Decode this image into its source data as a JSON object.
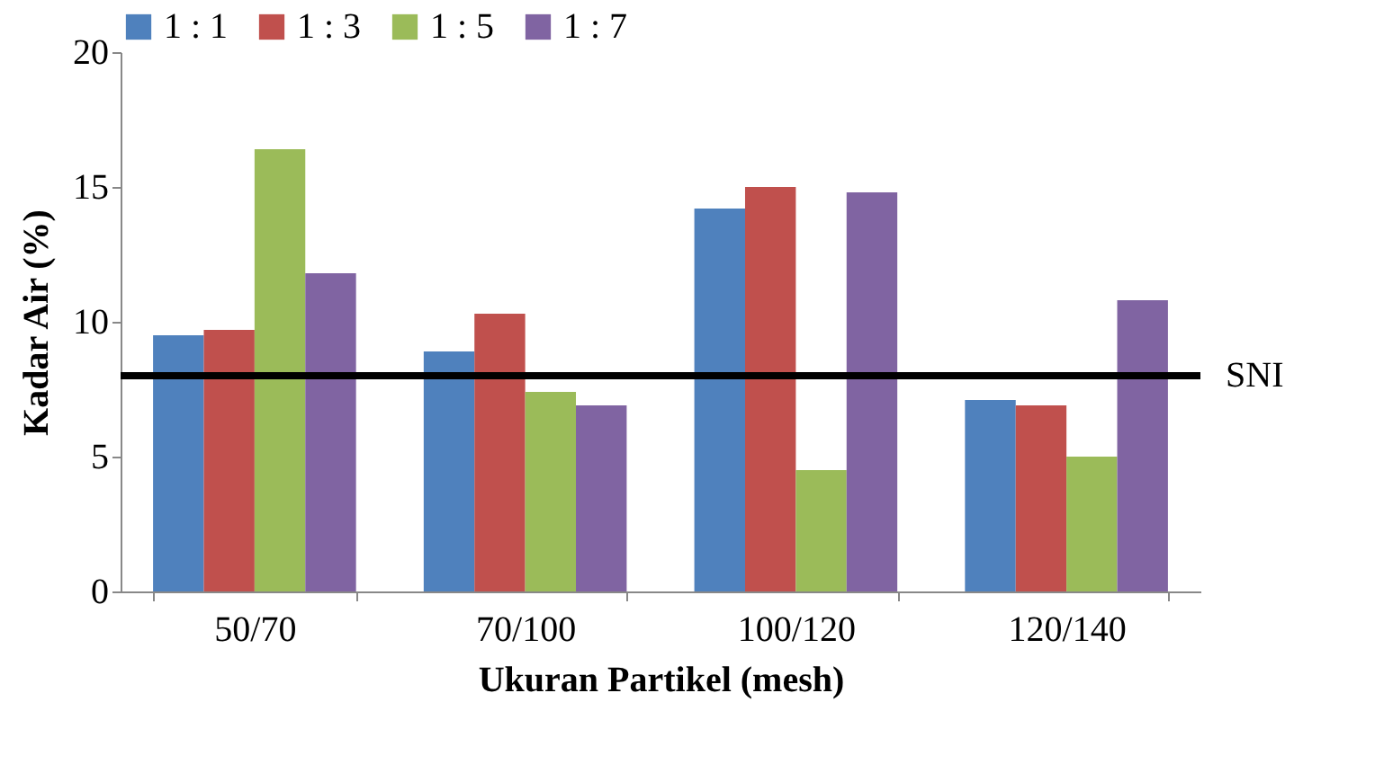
{
  "chart_data": {
    "type": "bar",
    "xlabel": "Ukuran Partikel (mesh)",
    "ylabel": "Kadar Air (%)",
    "categories": [
      "50/70",
      "70/100",
      "100/120",
      "120/140"
    ],
    "series": [
      {
        "name": "1 : 1",
        "color": "#4f81bd",
        "values": [
          9.5,
          8.9,
          14.2,
          7.1
        ]
      },
      {
        "name": "1 : 3",
        "color": "#c0504d",
        "values": [
          9.7,
          10.3,
          15.0,
          6.9
        ]
      },
      {
        "name": "1 : 5",
        "color": "#9bbb59",
        "values": [
          16.4,
          7.4,
          4.5,
          5.0
        ]
      },
      {
        "name": "1 : 7",
        "color": "#8064a2",
        "values": [
          11.8,
          6.9,
          14.8,
          10.8
        ]
      }
    ],
    "ylim": [
      0,
      20
    ],
    "yticks": [
      0,
      5,
      10,
      15,
      20
    ],
    "grid": false,
    "legend": "top",
    "ref_lines": [
      {
        "axis": "y",
        "value": 8,
        "label": "SNI",
        "color": "#000000"
      }
    ]
  }
}
